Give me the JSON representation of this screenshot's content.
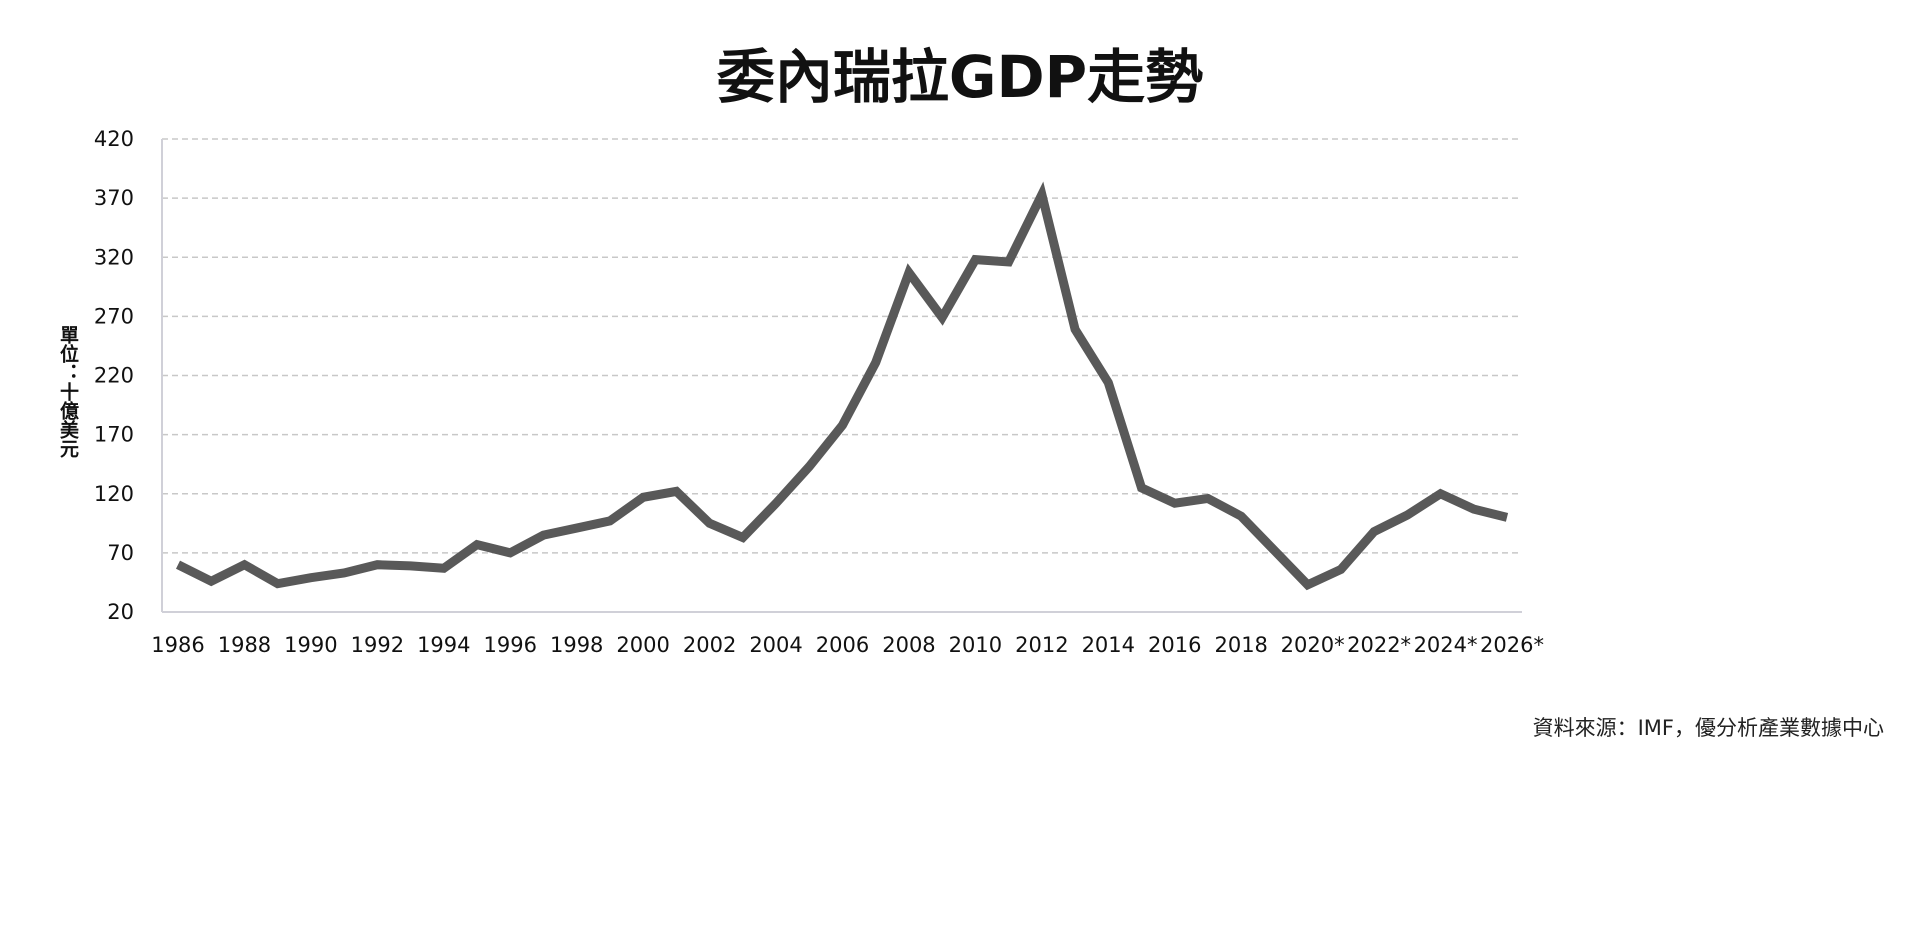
{
  "chart_data": {
    "type": "line",
    "title": "委內瑞拉GDP走勢",
    "ylabel": "單位：十億美元",
    "xlabel": "",
    "source": "資料來源：IMF，優分析產業數據中心",
    "ylim": [
      20,
      420
    ],
    "yticks": [
      20,
      70,
      120,
      170,
      220,
      270,
      320,
      370,
      420
    ],
    "grid": true,
    "line_color": "#595959",
    "x": [
      1986,
      1987,
      1988,
      1989,
      1990,
      1991,
      1992,
      1993,
      1994,
      1995,
      1996,
      1997,
      1998,
      1999,
      2000,
      2001,
      2002,
      2003,
      2004,
      2005,
      2006,
      2007,
      2008,
      2009,
      2010,
      2011,
      2012,
      2013,
      2014,
      2015,
      2016,
      2017,
      2018,
      2019,
      2020,
      2021,
      2022,
      2023,
      2024,
      2025,
      2026
    ],
    "xtick_labels": [
      "1986",
      "1988",
      "1990",
      "1992",
      "1994",
      "1996",
      "1998",
      "2000",
      "2002",
      "2004",
      "2006",
      "2008",
      "2010",
      "2012",
      "2014",
      "2016",
      "2018",
      "2020*",
      "2022*",
      "2024*",
      "2026*"
    ],
    "series": [
      {
        "values": [
          60,
          46,
          60,
          44,
          49,
          53,
          60,
          59,
          57,
          77,
          70,
          85,
          91,
          97,
          117,
          122,
          95,
          83,
          112,
          143,
          178,
          231,
          307,
          269,
          318,
          316,
          373,
          259,
          214,
          125,
          112,
          116,
          101,
          72,
          43,
          56,
          88,
          102,
          120,
          107,
          100
        ]
      }
    ]
  }
}
